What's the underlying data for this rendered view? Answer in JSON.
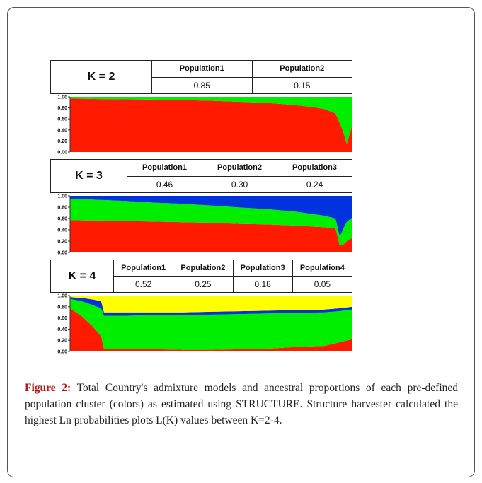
{
  "panels": [
    {
      "k_label": "K = 2",
      "populations": [
        {
          "name": "Population1",
          "value": "0.85"
        },
        {
          "name": "Population2",
          "value": "0.15"
        }
      ]
    },
    {
      "k_label": "K = 3",
      "populations": [
        {
          "name": "Population1",
          "value": "0.46"
        },
        {
          "name": "Population2",
          "value": "0.30"
        },
        {
          "name": "Population3",
          "value": "0.24"
        }
      ]
    },
    {
      "k_label": "K = 4",
      "populations": [
        {
          "name": "Population1",
          "value": "0.52"
        },
        {
          "name": "Population2",
          "value": "0.25"
        },
        {
          "name": "Population3",
          "value": "0.18"
        },
        {
          "name": "Population4",
          "value": "0.05"
        }
      ]
    }
  ],
  "chart_data": [
    {
      "type": "area",
      "k": 2,
      "ylim": [
        0,
        1
      ],
      "yticks": [
        "1.00",
        "0.80",
        "0.60",
        "0.40",
        "0.20",
        "0.00"
      ],
      "colors": [
        "#ff1a00",
        "#00ee00"
      ],
      "x": [
        0,
        0.1,
        0.2,
        0.3,
        0.4,
        0.5,
        0.6,
        0.7,
        0.8,
        0.85,
        0.9,
        0.94,
        0.965,
        0.98,
        1.0
      ],
      "series": [
        {
          "values": [
            0.97,
            0.96,
            0.955,
            0.95,
            0.94,
            0.93,
            0.91,
            0.89,
            0.85,
            0.82,
            0.78,
            0.7,
            0.4,
            0.15,
            0.5
          ]
        },
        {
          "values": [
            0.03,
            0.04,
            0.045,
            0.05,
            0.06,
            0.07,
            0.09,
            0.11,
            0.15,
            0.18,
            0.22,
            0.3,
            0.6,
            0.85,
            0.5
          ]
        }
      ]
    },
    {
      "type": "area",
      "k": 3,
      "ylim": [
        0,
        1
      ],
      "yticks": [
        "1.00",
        "0.80",
        "0.60",
        "0.40",
        "0.20",
        "0.00"
      ],
      "colors": [
        "#ff1a00",
        "#00ee00",
        "#0033dd"
      ],
      "x": [
        0,
        0.1,
        0.2,
        0.3,
        0.4,
        0.5,
        0.6,
        0.7,
        0.8,
        0.9,
        0.94,
        0.955,
        0.97,
        0.98,
        1.0
      ],
      "series": [
        {
          "values": [
            0.57,
            0.565,
            0.555,
            0.545,
            0.535,
            0.525,
            0.505,
            0.495,
            0.475,
            0.445,
            0.425,
            0.12,
            0.15,
            0.2,
            0.26
          ]
        },
        {
          "values": [
            0.38,
            0.365,
            0.355,
            0.335,
            0.325,
            0.305,
            0.29,
            0.27,
            0.245,
            0.205,
            0.175,
            0.16,
            0.3,
            0.34,
            0.36
          ]
        },
        {
          "values": [
            0.05,
            0.07,
            0.09,
            0.12,
            0.14,
            0.17,
            0.205,
            0.235,
            0.28,
            0.35,
            0.4,
            0.72,
            0.55,
            0.46,
            0.38
          ]
        }
      ]
    },
    {
      "type": "area",
      "k": 4,
      "ylim": [
        0,
        1
      ],
      "yticks": [
        "1.00",
        "0.80",
        "0.60",
        "0.40",
        "0.20",
        "0.00"
      ],
      "colors": [
        "#ff1a00",
        "#00ee00",
        "#0033dd",
        "#ffff00"
      ],
      "x": [
        0,
        0.04,
        0.08,
        0.11,
        0.12,
        0.2,
        0.3,
        0.4,
        0.5,
        0.6,
        0.7,
        0.8,
        0.9,
        0.95,
        1.0
      ],
      "series": [
        {
          "values": [
            0.77,
            0.64,
            0.45,
            0.27,
            0.05,
            0.04,
            0.04,
            0.03,
            0.03,
            0.04,
            0.05,
            0.08,
            0.1,
            0.16,
            0.22
          ]
        },
        {
          "values": [
            0.17,
            0.26,
            0.38,
            0.5,
            0.59,
            0.6,
            0.61,
            0.62,
            0.63,
            0.63,
            0.63,
            0.61,
            0.6,
            0.56,
            0.53
          ]
        },
        {
          "values": [
            0.03,
            0.06,
            0.1,
            0.13,
            0.06,
            0.06,
            0.05,
            0.05,
            0.05,
            0.05,
            0.05,
            0.05,
            0.05,
            0.05,
            0.05
          ]
        },
        {
          "values": [
            0.03,
            0.04,
            0.07,
            0.1,
            0.3,
            0.3,
            0.3,
            0.3,
            0.29,
            0.28,
            0.27,
            0.26,
            0.25,
            0.23,
            0.2
          ]
        }
      ]
    }
  ],
  "caption": {
    "label": "Figure 2:",
    "text": " Total Country's admixture models and ancestral proportions of each pre-defined population cluster (colors) as estimated using STRUCTURE. Structure harvester calculated the highest Ln probabilities plots L(K) values between K=2-4."
  }
}
